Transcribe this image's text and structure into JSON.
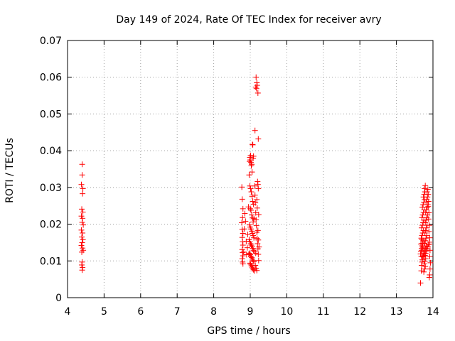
{
  "chart_data": {
    "type": "scatter",
    "title": "Day 149 of 2024, Rate Of TEC Index for receiver avry",
    "xlabel": "GPS time / hours",
    "ylabel": "ROTI / TECUs",
    "xlim": [
      4,
      14
    ],
    "ylim": [
      0,
      0.07
    ],
    "xticks": [
      4,
      5,
      6,
      7,
      8,
      9,
      10,
      11,
      12,
      13,
      14
    ],
    "yticks": [
      0,
      0.01,
      0.02,
      0.03,
      0.04,
      0.05,
      0.06,
      0.07
    ],
    "ytick_labels": [
      "0",
      "0.01",
      "0.02",
      "0.03",
      "0.04",
      "0.05",
      "0.06",
      "0.07"
    ],
    "grid": true,
    "marker": "+",
    "color": "#ff0000",
    "series": [
      {
        "name": "ROTI",
        "points": [
          [
            4.4,
            0.0363
          ],
          [
            4.4,
            0.0334
          ],
          [
            4.38,
            0.0308
          ],
          [
            4.42,
            0.0297
          ],
          [
            4.41,
            0.0283
          ],
          [
            4.39,
            0.0241
          ],
          [
            4.42,
            0.0233
          ],
          [
            4.38,
            0.0222
          ],
          [
            4.41,
            0.0216
          ],
          [
            4.4,
            0.0205
          ],
          [
            4.43,
            0.0198
          ],
          [
            4.38,
            0.0184
          ],
          [
            4.41,
            0.0176
          ],
          [
            4.39,
            0.0165
          ],
          [
            4.42,
            0.0158
          ],
          [
            4.4,
            0.015
          ],
          [
            4.38,
            0.0142
          ],
          [
            4.41,
            0.0135
          ],
          [
            4.43,
            0.0129
          ],
          [
            4.39,
            0.0124
          ],
          [
            4.4,
            0.0097
          ],
          [
            4.39,
            0.0089
          ],
          [
            4.41,
            0.0082
          ],
          [
            4.4,
            0.0075
          ],
          [
            8.77,
            0.0301
          ],
          [
            8.78,
            0.0268
          ],
          [
            8.8,
            0.0242
          ],
          [
            8.79,
            0.0218
          ],
          [
            8.77,
            0.0204
          ],
          [
            8.78,
            0.0186
          ],
          [
            8.8,
            0.0175
          ],
          [
            8.78,
            0.0164
          ],
          [
            8.79,
            0.0152
          ],
          [
            8.8,
            0.0143
          ],
          [
            8.78,
            0.0131
          ],
          [
            8.79,
            0.0123
          ],
          [
            8.8,
            0.0114
          ],
          [
            8.78,
            0.0106
          ],
          [
            8.79,
            0.0097
          ],
          [
            8.8,
            0.0092
          ],
          [
            8.82,
            0.0124
          ],
          [
            8.84,
            0.0187
          ],
          [
            8.85,
            0.0229
          ],
          [
            8.87,
            0.0208
          ],
          [
            8.89,
            0.0153
          ],
          [
            8.9,
            0.0117
          ],
          [
            8.92,
            0.0136
          ],
          [
            8.93,
            0.0172
          ],
          [
            8.95,
            0.0247
          ],
          [
            8.96,
            0.0118
          ],
          [
            8.97,
            0.0334
          ],
          [
            8.98,
            0.0371
          ],
          [
            8.99,
            0.0382
          ],
          [
            9.0,
            0.0375
          ],
          [
            9.01,
            0.0387
          ],
          [
            9.02,
            0.0368
          ],
          [
            9.03,
            0.0359
          ],
          [
            9.04,
            0.0363
          ],
          [
            9.05,
            0.0342
          ],
          [
            9.06,
            0.0417
          ],
          [
            9.07,
            0.0416
          ],
          [
            9.08,
            0.0379
          ],
          [
            9.09,
            0.0385
          ],
          [
            8.99,
            0.0304
          ],
          [
            9.01,
            0.0297
          ],
          [
            9.03,
            0.0288
          ],
          [
            9.05,
            0.0276
          ],
          [
            9.07,
            0.0262
          ],
          [
            9.09,
            0.0254
          ],
          [
            9.0,
            0.0242
          ],
          [
            9.02,
            0.0238
          ],
          [
            9.04,
            0.0225
          ],
          [
            9.06,
            0.0217
          ],
          [
            9.08,
            0.0206
          ],
          [
            9.1,
            0.0215
          ],
          [
            8.98,
            0.0198
          ],
          [
            9.0,
            0.0192
          ],
          [
            9.02,
            0.0187
          ],
          [
            9.04,
            0.0181
          ],
          [
            9.06,
            0.0175
          ],
          [
            9.08,
            0.0169
          ],
          [
            9.1,
            0.0163
          ],
          [
            8.97,
            0.0158
          ],
          [
            8.99,
            0.0152
          ],
          [
            9.01,
            0.0147
          ],
          [
            9.03,
            0.0143
          ],
          [
            9.05,
            0.0139
          ],
          [
            9.07,
            0.0134
          ],
          [
            9.09,
            0.0129
          ],
          [
            9.11,
            0.0125
          ],
          [
            8.98,
            0.0121
          ],
          [
            9.0,
            0.0117
          ],
          [
            9.02,
            0.0113
          ],
          [
            9.04,
            0.0109
          ],
          [
            9.06,
            0.0105
          ],
          [
            9.08,
            0.0101
          ],
          [
            9.1,
            0.0098
          ],
          [
            8.99,
            0.0094
          ],
          [
            9.01,
            0.0091
          ],
          [
            9.03,
            0.0087
          ],
          [
            9.05,
            0.0083
          ],
          [
            9.07,
            0.0079
          ],
          [
            9.09,
            0.0076
          ],
          [
            9.11,
            0.0073
          ],
          [
            9.12,
            0.0304
          ],
          [
            9.13,
            0.0279
          ],
          [
            9.14,
            0.0258
          ],
          [
            9.15,
            0.0231
          ],
          [
            9.16,
            0.0212
          ],
          [
            9.17,
            0.0196
          ],
          [
            9.18,
            0.0178
          ],
          [
            9.19,
            0.0161
          ],
          [
            9.2,
            0.0147
          ],
          [
            9.21,
            0.0133
          ],
          [
            9.22,
            0.0118
          ],
          [
            9.23,
            0.0101
          ],
          [
            9.14,
            0.0088
          ],
          [
            9.16,
            0.008
          ],
          [
            9.18,
            0.0074
          ],
          [
            9.2,
            0.0316
          ],
          [
            9.21,
            0.0308
          ],
          [
            9.22,
            0.0297
          ],
          [
            9.18,
            0.0267
          ],
          [
            9.23,
            0.0226
          ],
          [
            9.19,
            0.0244
          ],
          [
            9.21,
            0.0183
          ],
          [
            9.22,
            0.0157
          ],
          [
            9.24,
            0.0138
          ],
          [
            9.15,
            0.0121
          ],
          [
            9.13,
            0.0455
          ],
          [
            9.22,
            0.0432
          ],
          [
            9.16,
            0.06
          ],
          [
            9.18,
            0.0585
          ],
          [
            9.19,
            0.0578
          ],
          [
            9.17,
            0.0569
          ],
          [
            9.15,
            0.0573
          ],
          [
            9.21,
            0.0557
          ],
          [
            13.66,
            0.004
          ],
          [
            13.68,
            0.0073
          ],
          [
            13.69,
            0.0088
          ],
          [
            13.7,
            0.0097
          ],
          [
            13.71,
            0.0103
          ],
          [
            13.72,
            0.0111
          ],
          [
            13.66,
            0.0119
          ],
          [
            13.67,
            0.0126
          ],
          [
            13.69,
            0.0134
          ],
          [
            13.7,
            0.0141
          ],
          [
            13.71,
            0.0148
          ],
          [
            13.73,
            0.0155
          ],
          [
            13.68,
            0.0162
          ],
          [
            13.7,
            0.0169
          ],
          [
            13.72,
            0.0176
          ],
          [
            13.74,
            0.0183
          ],
          [
            13.69,
            0.019
          ],
          [
            13.71,
            0.0197
          ],
          [
            13.73,
            0.0204
          ],
          [
            13.75,
            0.0211
          ],
          [
            13.7,
            0.0218
          ],
          [
            13.72,
            0.0225
          ],
          [
            13.74,
            0.0232
          ],
          [
            13.76,
            0.0239
          ],
          [
            13.71,
            0.0246
          ],
          [
            13.73,
            0.0253
          ],
          [
            13.75,
            0.026
          ],
          [
            13.77,
            0.0267
          ],
          [
            13.74,
            0.0274
          ],
          [
            13.76,
            0.0281
          ],
          [
            13.78,
            0.0288
          ],
          [
            13.77,
            0.0297
          ],
          [
            13.79,
            0.0305
          ],
          [
            13.75,
            0.007
          ],
          [
            13.77,
            0.0078
          ],
          [
            13.79,
            0.0085
          ],
          [
            13.76,
            0.0092
          ],
          [
            13.78,
            0.0099
          ],
          [
            13.8,
            0.0106
          ],
          [
            13.74,
            0.0113
          ],
          [
            13.76,
            0.012
          ],
          [
            13.78,
            0.0127
          ],
          [
            13.8,
            0.0134
          ],
          [
            13.82,
            0.0141
          ],
          [
            13.77,
            0.0148
          ],
          [
            13.79,
            0.0155
          ],
          [
            13.81,
            0.0162
          ],
          [
            13.83,
            0.0169
          ],
          [
            13.78,
            0.0176
          ],
          [
            13.8,
            0.0183
          ],
          [
            13.82,
            0.019
          ],
          [
            13.84,
            0.0197
          ],
          [
            13.79,
            0.0204
          ],
          [
            13.81,
            0.0211
          ],
          [
            13.83,
            0.0218
          ],
          [
            13.85,
            0.0225
          ],
          [
            13.8,
            0.0232
          ],
          [
            13.82,
            0.0239
          ],
          [
            13.84,
            0.0246
          ],
          [
            13.86,
            0.0253
          ],
          [
            13.81,
            0.026
          ],
          [
            13.83,
            0.0267
          ],
          [
            13.85,
            0.0274
          ],
          [
            13.87,
            0.0281
          ],
          [
            13.84,
            0.0288
          ],
          [
            13.86,
            0.0295
          ],
          [
            13.88,
            0.0262
          ],
          [
            13.87,
            0.0248
          ],
          [
            13.89,
            0.0231
          ],
          [
            13.88,
            0.0214
          ],
          [
            13.9,
            0.0197
          ],
          [
            13.89,
            0.018
          ],
          [
            13.91,
            0.0163
          ],
          [
            13.9,
            0.0146
          ],
          [
            13.92,
            0.0129
          ],
          [
            13.91,
            0.0112
          ],
          [
            13.93,
            0.0095
          ],
          [
            13.92,
            0.0078
          ],
          [
            13.91,
            0.0062
          ],
          [
            13.9,
            0.0055
          ],
          [
            13.68,
            0.0113
          ],
          [
            13.69,
            0.0129
          ],
          [
            13.67,
            0.0146
          ],
          [
            13.7,
            0.0158
          ],
          [
            13.72,
            0.0137
          ],
          [
            13.73,
            0.0119
          ],
          [
            13.75,
            0.0133
          ],
          [
            13.76,
            0.0147
          ],
          [
            13.78,
            0.0115
          ],
          [
            13.8,
            0.0121
          ],
          [
            13.82,
            0.0127
          ],
          [
            13.84,
            0.0133
          ],
          [
            13.86,
            0.0139
          ],
          [
            13.88,
            0.0145
          ],
          [
            13.9,
            0.0151
          ]
        ]
      }
    ]
  }
}
